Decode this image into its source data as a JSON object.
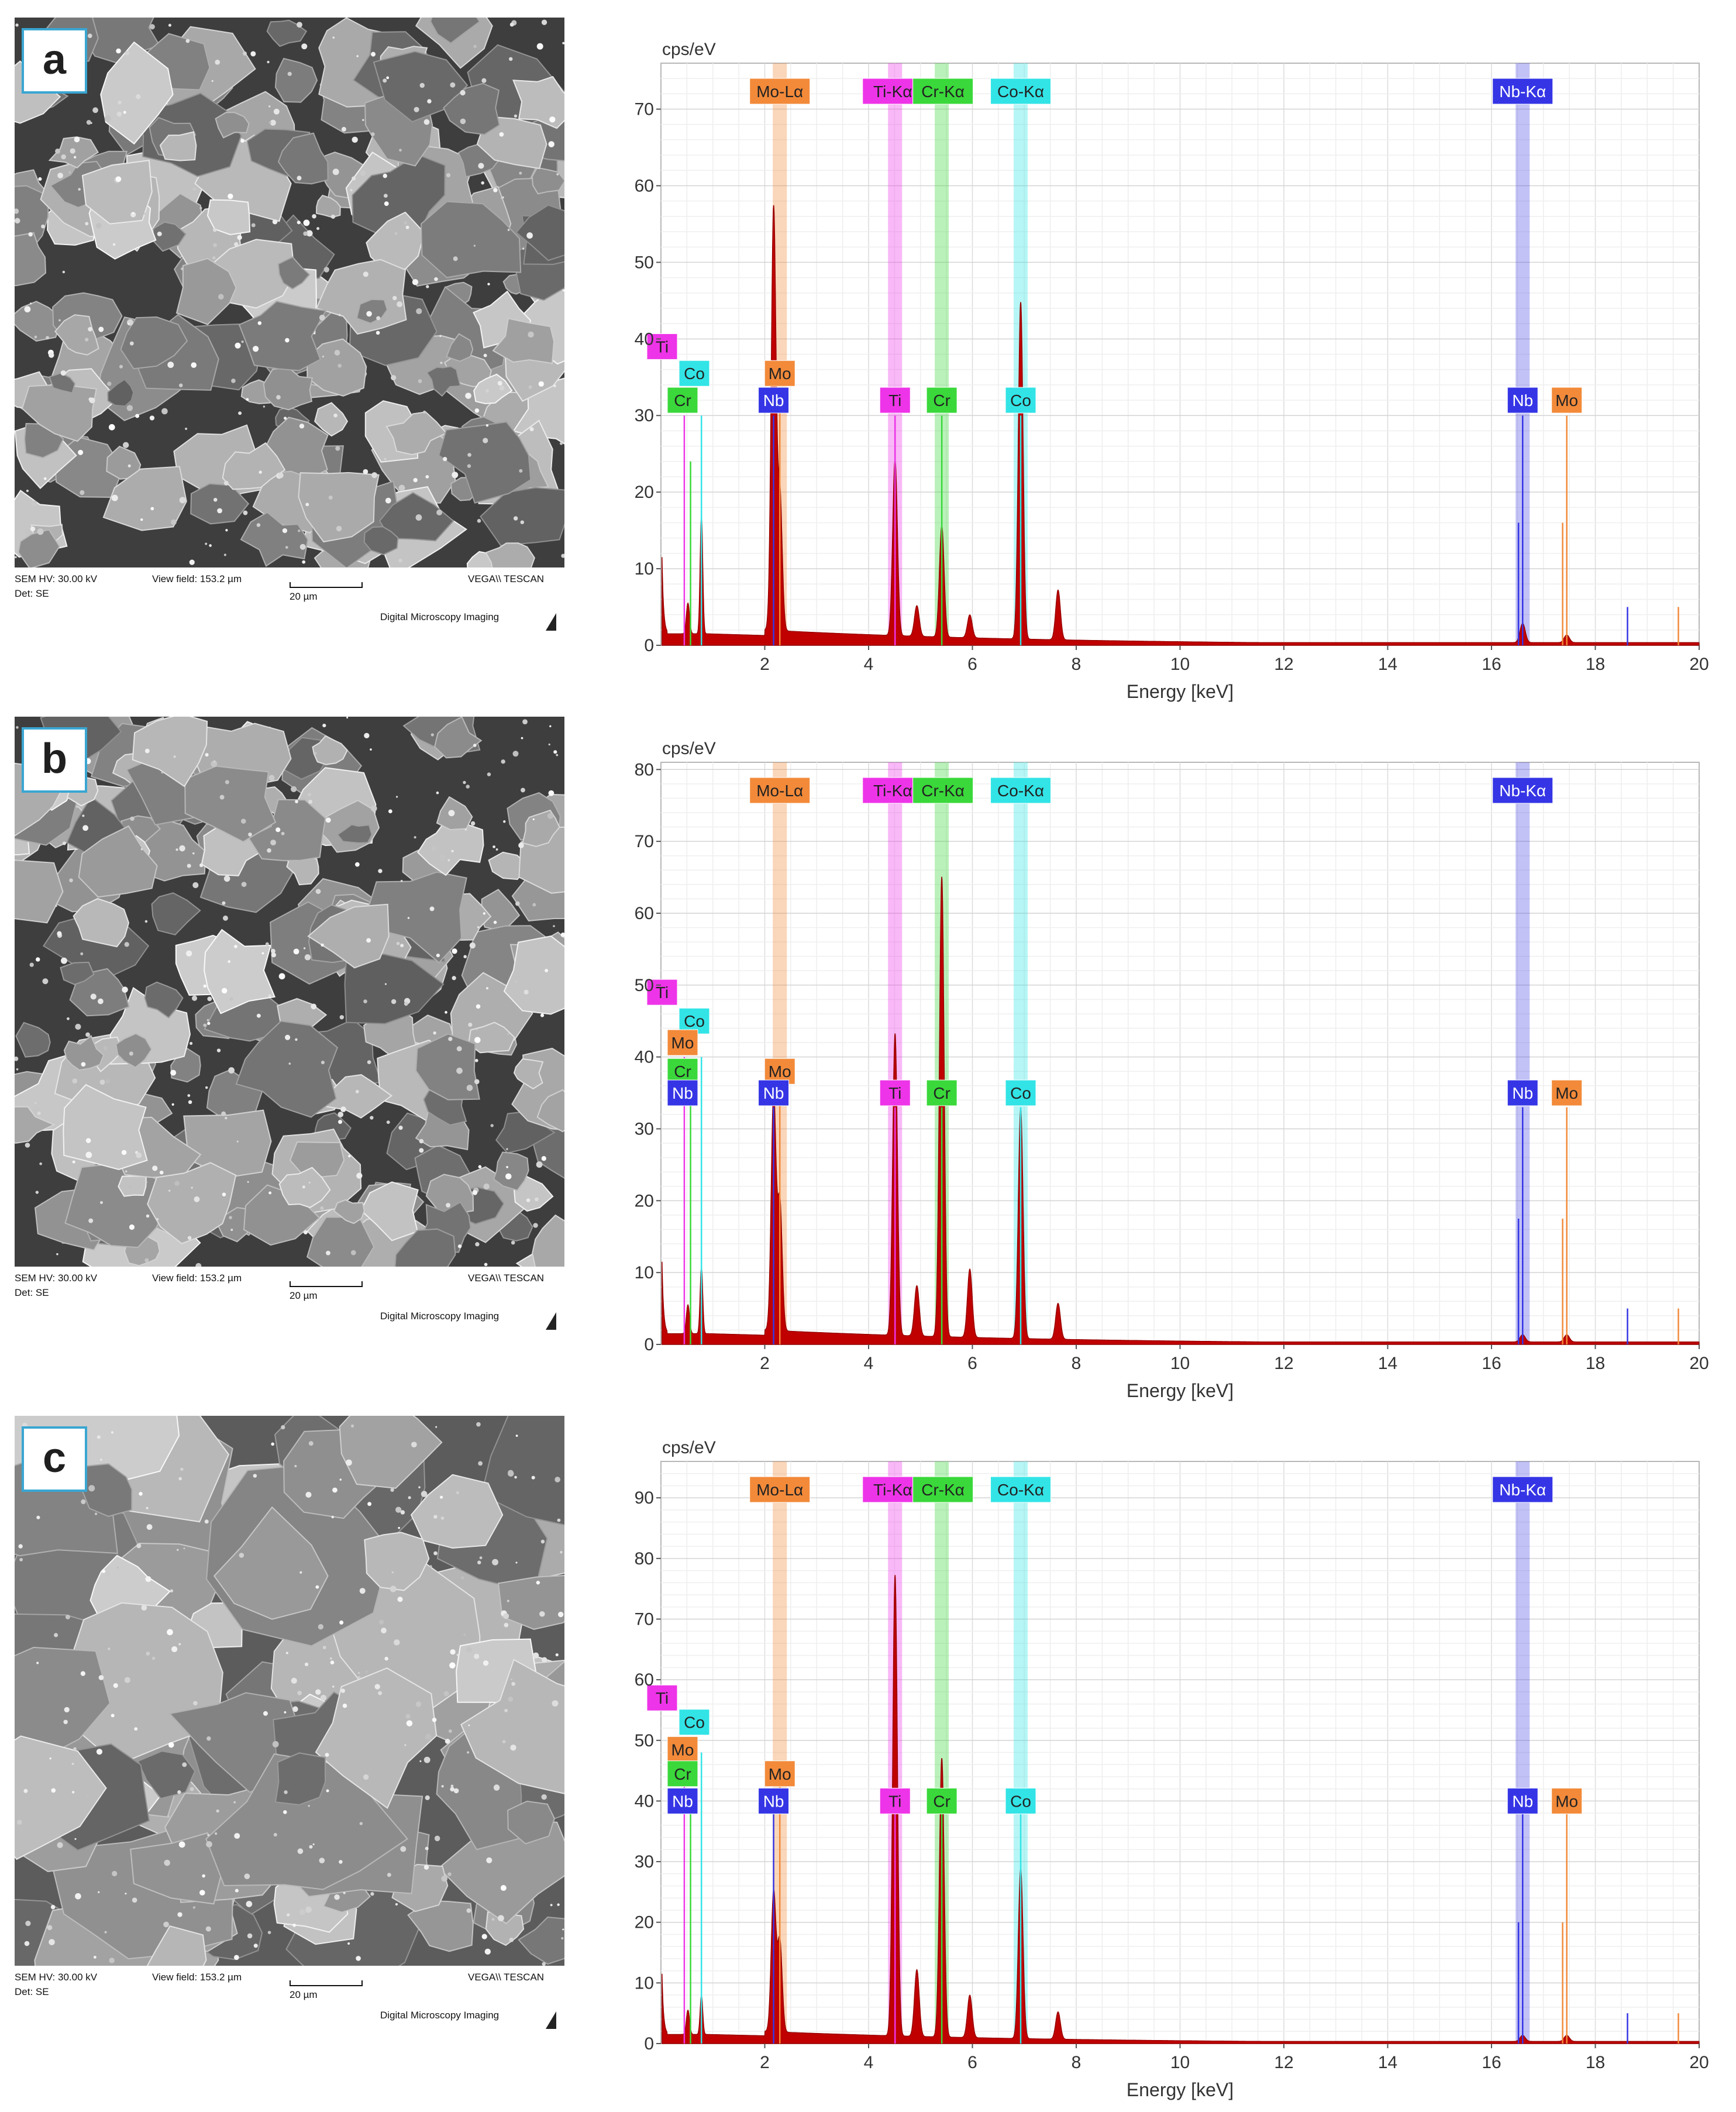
{
  "sem_panels": [
    {
      "letter": "a",
      "hv": "SEM HV: 30.00 kV",
      "view": "View field: 153.2 µm",
      "scale": "20 µm",
      "det": "Det: SE",
      "brand": "VEGA\\\\ TESCAN",
      "footer": "Digital Microscopy Imaging"
    },
    {
      "letter": "b",
      "hv": "SEM HV: 30.00 kV",
      "view": "View field: 153.2 µm",
      "scale": "20 µm",
      "det": "Det: SE",
      "brand": "VEGA\\\\ TESCAN",
      "footer": "Digital Microscopy Imaging"
    },
    {
      "letter": "c",
      "hv": "SEM HV: 30.00 kV",
      "view": "View field: 153.2 µm",
      "scale": "20 µm",
      "det": "Det: SE",
      "brand": "VEGA\\\\ TESCAN",
      "footer": "Digital Microscopy Imaging"
    }
  ],
  "colors": {
    "spectrum": "#c00000",
    "Mo": "#f28a3a",
    "Ti": "#ee34e8",
    "Cr": "#3ad83a",
    "Co": "#32e4e6",
    "Nb": "#3535e6"
  },
  "chart_data": [
    {
      "type": "line",
      "panel": "a",
      "ylabel": "cps/eV",
      "xlabel": "Energy [keV]",
      "xlim": [
        0,
        20
      ],
      "ylim": [
        0,
        76
      ],
      "xticks": [
        "2",
        "4",
        "6",
        "8",
        "10",
        "12",
        "14",
        "16",
        "18",
        "20"
      ],
      "yticks": [
        "0",
        "10",
        "20",
        "30",
        "40",
        "50",
        "60",
        "70"
      ],
      "peaks": [
        [
          2.17,
          55
        ],
        [
          2.29,
          18
        ],
        [
          4.51,
          23
        ],
        [
          4.93,
          4
        ],
        [
          5.41,
          14.5
        ],
        [
          5.95,
          3
        ],
        [
          6.93,
          44
        ],
        [
          7.65,
          6.5
        ],
        [
          16.6,
          2.5
        ],
        [
          17.45,
          1
        ]
      ],
      "series_top": [
        {
          "label": "Mo-Lα",
          "el": "Mo",
          "x": 2.29
        },
        {
          "label": "Ti-Kα",
          "el": "Ti",
          "x": 4.51
        },
        {
          "label": "Cr-Kα",
          "el": "Cr",
          "x": 5.41
        },
        {
          "label": "Co-Kα",
          "el": "Co",
          "x": 6.93
        },
        {
          "label": "Nb-Kα",
          "el": "Nb",
          "x": 16.6
        }
      ],
      "labels_left": [
        {
          "t": "Ti",
          "el": "Ti",
          "y": 39
        },
        {
          "t": "Co",
          "el": "Co",
          "y": 35.5
        },
        {
          "t": "Cr",
          "el": "Cr",
          "y": 32
        }
      ],
      "labels_mid": [
        {
          "t": "Mo",
          "el": "Mo",
          "x": 2.29,
          "y": 35.5
        },
        {
          "t": "Nb",
          "el": "Nb",
          "x": 2.17,
          "y": 32
        },
        {
          "t": "Ti",
          "el": "Ti",
          "x": 4.51,
          "y": 32
        },
        {
          "t": "Cr",
          "el": "Cr",
          "x": 5.41,
          "y": 32
        },
        {
          "t": "Co",
          "el": "Co",
          "x": 6.93,
          "y": 32
        },
        {
          "t": "Nb",
          "el": "Nb",
          "x": 16.6,
          "y": 32
        },
        {
          "t": "Mo",
          "el": "Mo",
          "x": 17.45,
          "y": 32
        }
      ]
    },
    {
      "type": "line",
      "panel": "b",
      "ylabel": "cps/eV",
      "xlabel": "Energy [keV]",
      "xlim": [
        0,
        20
      ],
      "ylim": [
        0,
        81
      ],
      "xticks": [
        "2",
        "4",
        "6",
        "8",
        "10",
        "12",
        "14",
        "16",
        "18",
        "20"
      ],
      "yticks": [
        "0",
        "10",
        "20",
        "30",
        "40",
        "50",
        "60",
        "70",
        "80"
      ],
      "peaks": [
        [
          2.17,
          33
        ],
        [
          2.29,
          18
        ],
        [
          4.51,
          42
        ],
        [
          4.93,
          7
        ],
        [
          5.41,
          64
        ],
        [
          5.95,
          9.5
        ],
        [
          6.93,
          32
        ],
        [
          7.65,
          5
        ],
        [
          16.6,
          1
        ],
        [
          17.45,
          1
        ]
      ],
      "series_top": [
        {
          "label": "Mo-Lα",
          "el": "Mo",
          "x": 2.29
        },
        {
          "label": "Ti-Kα",
          "el": "Ti",
          "x": 4.51
        },
        {
          "label": "Cr-Kα",
          "el": "Cr",
          "x": 5.41
        },
        {
          "label": "Co-Kα",
          "el": "Co",
          "x": 6.93
        },
        {
          "label": "Nb-Kα",
          "el": "Nb",
          "x": 16.6
        }
      ],
      "labels_left": [
        {
          "t": "Ti",
          "el": "Ti",
          "y": 49
        },
        {
          "t": "Co",
          "el": "Co",
          "y": 45
        },
        {
          "t": "Mo",
          "el": "Mo",
          "y": 42
        },
        {
          "t": "Cr",
          "el": "Cr",
          "y": 38
        },
        {
          "t": "Nb",
          "el": "Nb",
          "y": 35
        }
      ],
      "labels_mid": [
        {
          "t": "Mo",
          "el": "Mo",
          "x": 2.29,
          "y": 38
        },
        {
          "t": "Nb",
          "el": "Nb",
          "x": 2.17,
          "y": 35
        },
        {
          "t": "Ti",
          "el": "Ti",
          "x": 4.51,
          "y": 35
        },
        {
          "t": "Cr",
          "el": "Cr",
          "x": 5.41,
          "y": 35
        },
        {
          "t": "Co",
          "el": "Co",
          "x": 6.93,
          "y": 35
        },
        {
          "t": "Nb",
          "el": "Nb",
          "x": 16.6,
          "y": 35
        },
        {
          "t": "Mo",
          "el": "Mo",
          "x": 17.45,
          "y": 35
        }
      ]
    },
    {
      "type": "line",
      "panel": "c",
      "ylabel": "cps/eV",
      "xlabel": "Energy [keV]",
      "xlim": [
        0,
        20
      ],
      "ylim": [
        0,
        96
      ],
      "xticks": [
        "2",
        "4",
        "6",
        "8",
        "10",
        "12",
        "14",
        "16",
        "18",
        "20"
      ],
      "yticks": [
        "0",
        "10",
        "20",
        "30",
        "40",
        "50",
        "60",
        "70",
        "80",
        "90"
      ],
      "peaks": [
        [
          2.17,
          23
        ],
        [
          2.29,
          15
        ],
        [
          4.51,
          76
        ],
        [
          4.93,
          11
        ],
        [
          5.41,
          46
        ],
        [
          5.95,
          7
        ],
        [
          6.93,
          28
        ],
        [
          7.65,
          4.5
        ],
        [
          16.6,
          1
        ],
        [
          17.45,
          1
        ]
      ],
      "series_top": [
        {
          "label": "Mo-Lα",
          "el": "Mo",
          "x": 2.29
        },
        {
          "label": "Ti-Kα",
          "el": "Ti",
          "x": 4.51
        },
        {
          "label": "Cr-Kα",
          "el": "Cr",
          "x": 5.41
        },
        {
          "label": "Co-Kα",
          "el": "Co",
          "x": 6.93
        },
        {
          "label": "Nb-Kα",
          "el": "Nb",
          "x": 16.6
        }
      ],
      "labels_left": [
        {
          "t": "Ti",
          "el": "Ti",
          "y": 57
        },
        {
          "t": "Co",
          "el": "Co",
          "y": 53
        },
        {
          "t": "Mo",
          "el": "Mo",
          "y": 48.5
        },
        {
          "t": "Cr",
          "el": "Cr",
          "y": 44.5
        },
        {
          "t": "Nb",
          "el": "Nb",
          "y": 40
        }
      ],
      "labels_mid": [
        {
          "t": "Mo",
          "el": "Mo",
          "x": 2.29,
          "y": 44.5
        },
        {
          "t": "Nb",
          "el": "Nb",
          "x": 2.17,
          "y": 40
        },
        {
          "t": "Ti",
          "el": "Ti",
          "x": 4.51,
          "y": 40
        },
        {
          "t": "Cr",
          "el": "Cr",
          "x": 5.41,
          "y": 40
        },
        {
          "t": "Co",
          "el": "Co",
          "x": 6.93,
          "y": 40
        },
        {
          "t": "Nb",
          "el": "Nb",
          "x": 16.6,
          "y": 40
        },
        {
          "t": "Mo",
          "el": "Mo",
          "x": 17.45,
          "y": 40
        }
      ]
    }
  ]
}
